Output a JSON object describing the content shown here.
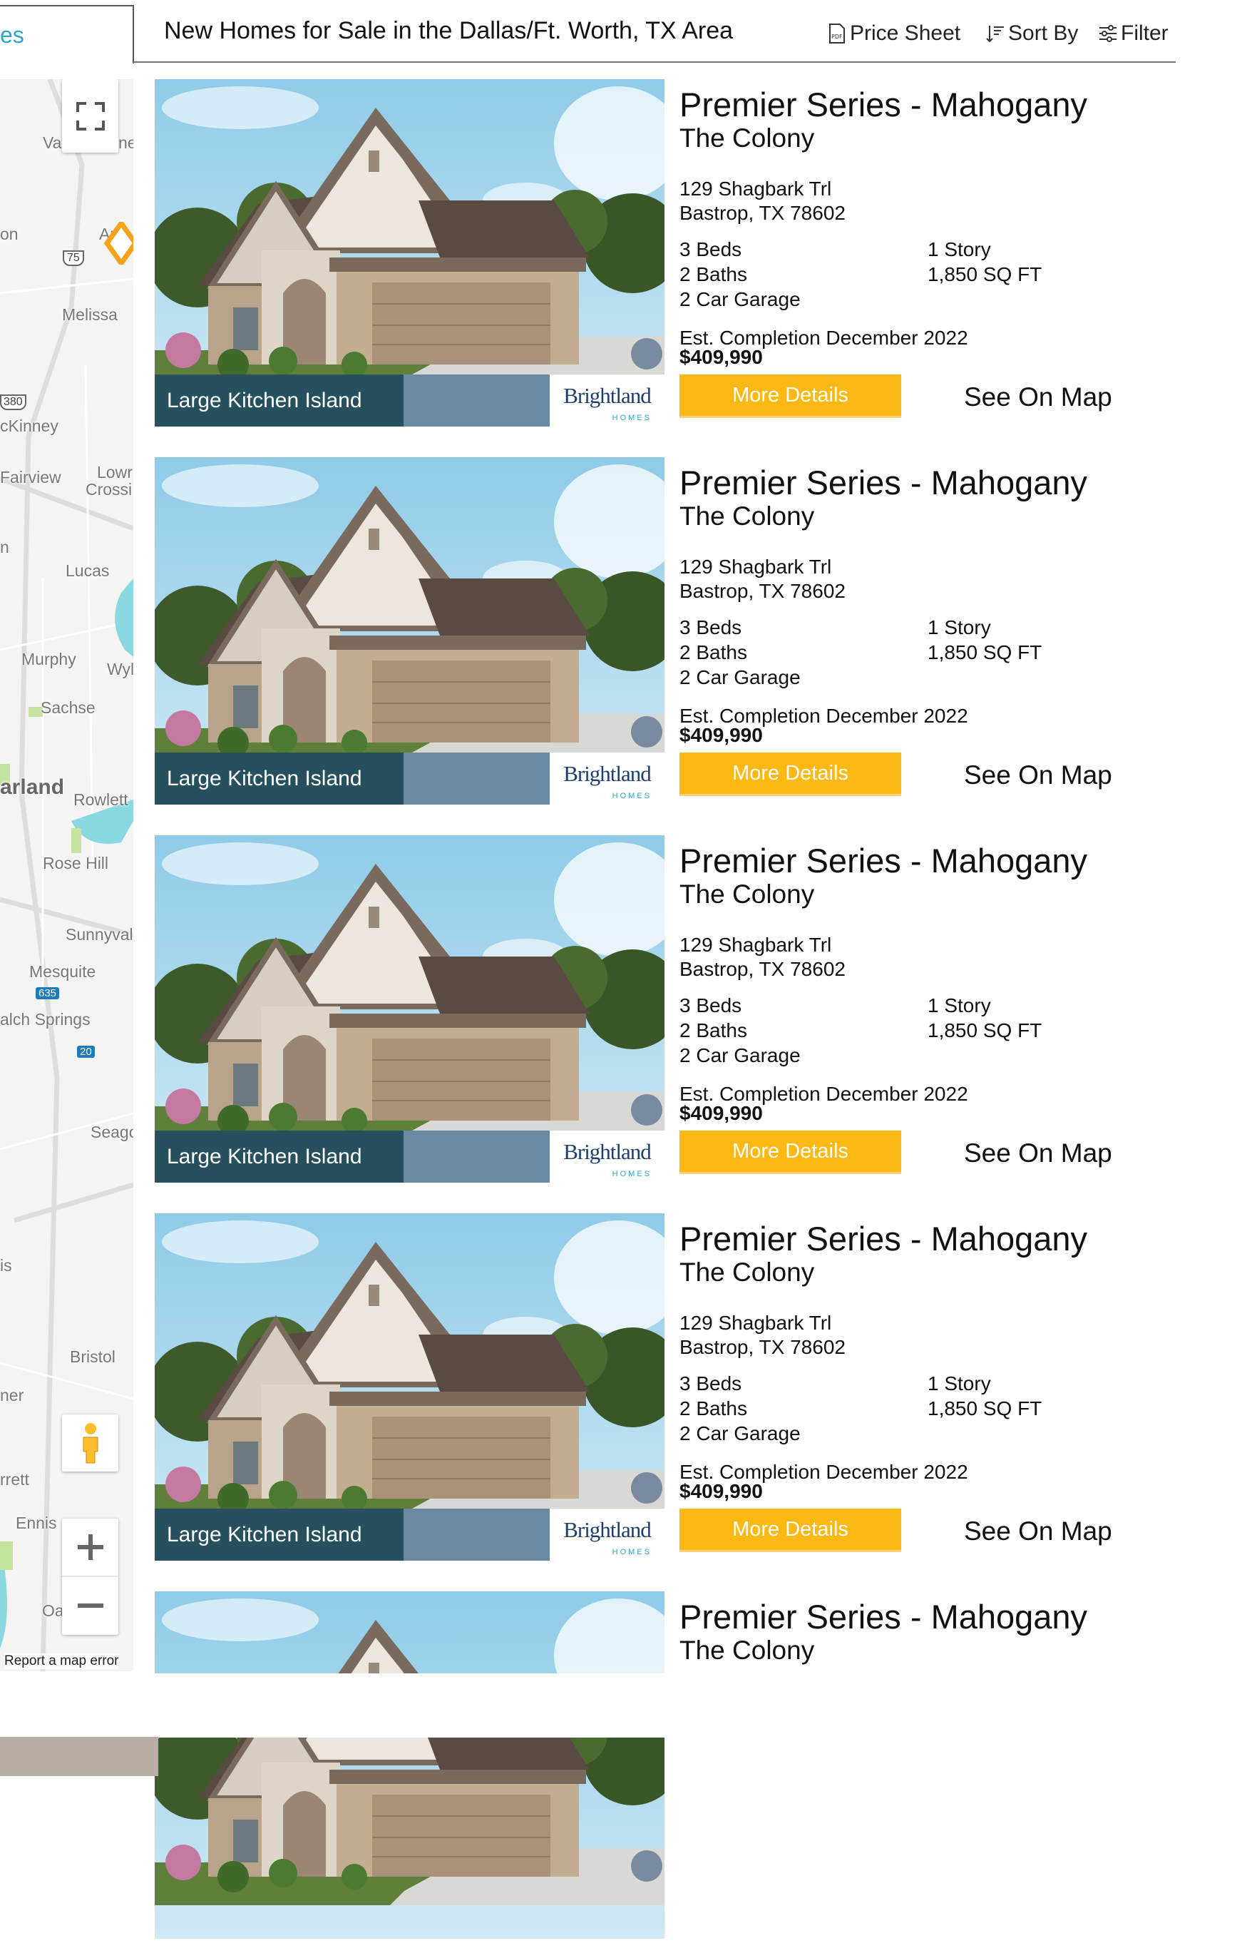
{
  "header": {
    "tab_partial": "es",
    "title": "New Homes for Sale in the Dallas/Ft. Worth, TX Area",
    "price_sheet": "Price Sheet",
    "sort_by": "Sort By",
    "filter": "Filter"
  },
  "map": {
    "labels": [
      "Va",
      "ne",
      "on",
      "Ar",
      "Melissa",
      "cKinney",
      "Fairview",
      "Lowr",
      "Crossi",
      "n",
      "Lucas",
      "Murphy",
      "Wyl",
      "Sachse",
      "arland",
      "Rowlett",
      "Rose Hill",
      "Sunnyval",
      "Mesquite",
      "alch Springs",
      "Seago",
      "is",
      "Bristol",
      "ner",
      "rrett",
      "Ennis",
      "Oa"
    ],
    "shields": [
      "75",
      "380",
      "635",
      "20"
    ],
    "report": "Report a map error",
    "marker_color": "#f7a21b"
  },
  "colors": {
    "accent": "#fdb913",
    "link": "#2aa6c8"
  },
  "listings": [
    {
      "caption": "Large Kitchen Island",
      "logo": "Brightland",
      "logo_sub": "HOMES",
      "title": "Premier Series - Mahogany",
      "community": "The Colony",
      "address1": "129 Shagbark Trl",
      "address2": "Bastrop, TX 78602",
      "beds": "3 Beds",
      "baths": "2 Baths",
      "garage": "2 Car Garage",
      "stories": "1 Story",
      "sqft": "1,850 SQ FT",
      "completion": "Est. Completion December 2022",
      "price": "$409,990",
      "more": "More Details",
      "see_map": "See On Map"
    },
    {
      "caption": "Large Kitchen Island",
      "logo": "Brightland",
      "logo_sub": "HOMES",
      "title": "Premier Series - Mahogany",
      "community": "The Colony",
      "address1": "129 Shagbark Trl",
      "address2": "Bastrop, TX 78602",
      "beds": "3 Beds",
      "baths": "2 Baths",
      "garage": "2 Car Garage",
      "stories": "1 Story",
      "sqft": "1,850 SQ FT",
      "completion": "Est. Completion December 2022",
      "price": "$409,990",
      "more": "More Details",
      "see_map": "See On Map"
    },
    {
      "caption": "Large Kitchen Island",
      "logo": "Brightland",
      "logo_sub": "HOMES",
      "title": "Premier Series - Mahogany",
      "community": "The Colony",
      "address1": "129 Shagbark Trl",
      "address2": "Bastrop, TX 78602",
      "beds": "3 Beds",
      "baths": "2 Baths",
      "garage": "2 Car Garage",
      "stories": "1 Story",
      "sqft": "1,850 SQ FT",
      "completion": "Est. Completion December 2022",
      "price": "$409,990",
      "more": "More Details",
      "see_map": "See On Map"
    },
    {
      "caption": "Large Kitchen Island",
      "logo": "Brightland",
      "logo_sub": "HOMES",
      "title": "Premier Series - Mahogany",
      "community": "The Colony",
      "address1": "129 Shagbark Trl",
      "address2": "Bastrop, TX 78602",
      "beds": "3 Beds",
      "baths": "2 Baths",
      "garage": "2 Car Garage",
      "stories": "1 Story",
      "sqft": "1,850 SQ FT",
      "completion": "Est. Completion December 2022",
      "price": "$409,990",
      "more": "More Details",
      "see_map": "See On Map"
    },
    {
      "title": "Premier Series - Mahogany",
      "community": "The Colony"
    }
  ]
}
